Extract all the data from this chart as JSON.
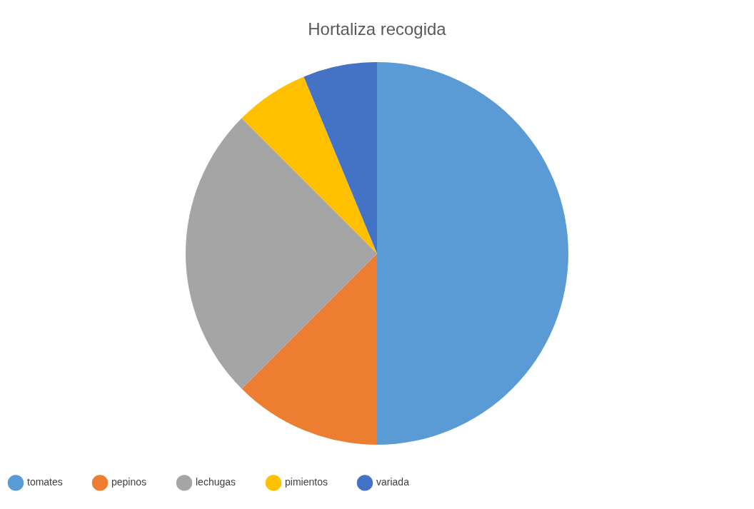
{
  "chart_data": {
    "type": "pie",
    "title": "Hortaliza recogida",
    "categories": [
      "tomates",
      "pepinos",
      "lechugas",
      "pimientos",
      "variada"
    ],
    "values": [
      50,
      12.5,
      25,
      6.25,
      6.25
    ],
    "colors": [
      "#5b9bd5",
      "#ed7d31",
      "#a5a5a5",
      "#ffc000",
      "#4472c4"
    ],
    "legend": "bottom"
  }
}
